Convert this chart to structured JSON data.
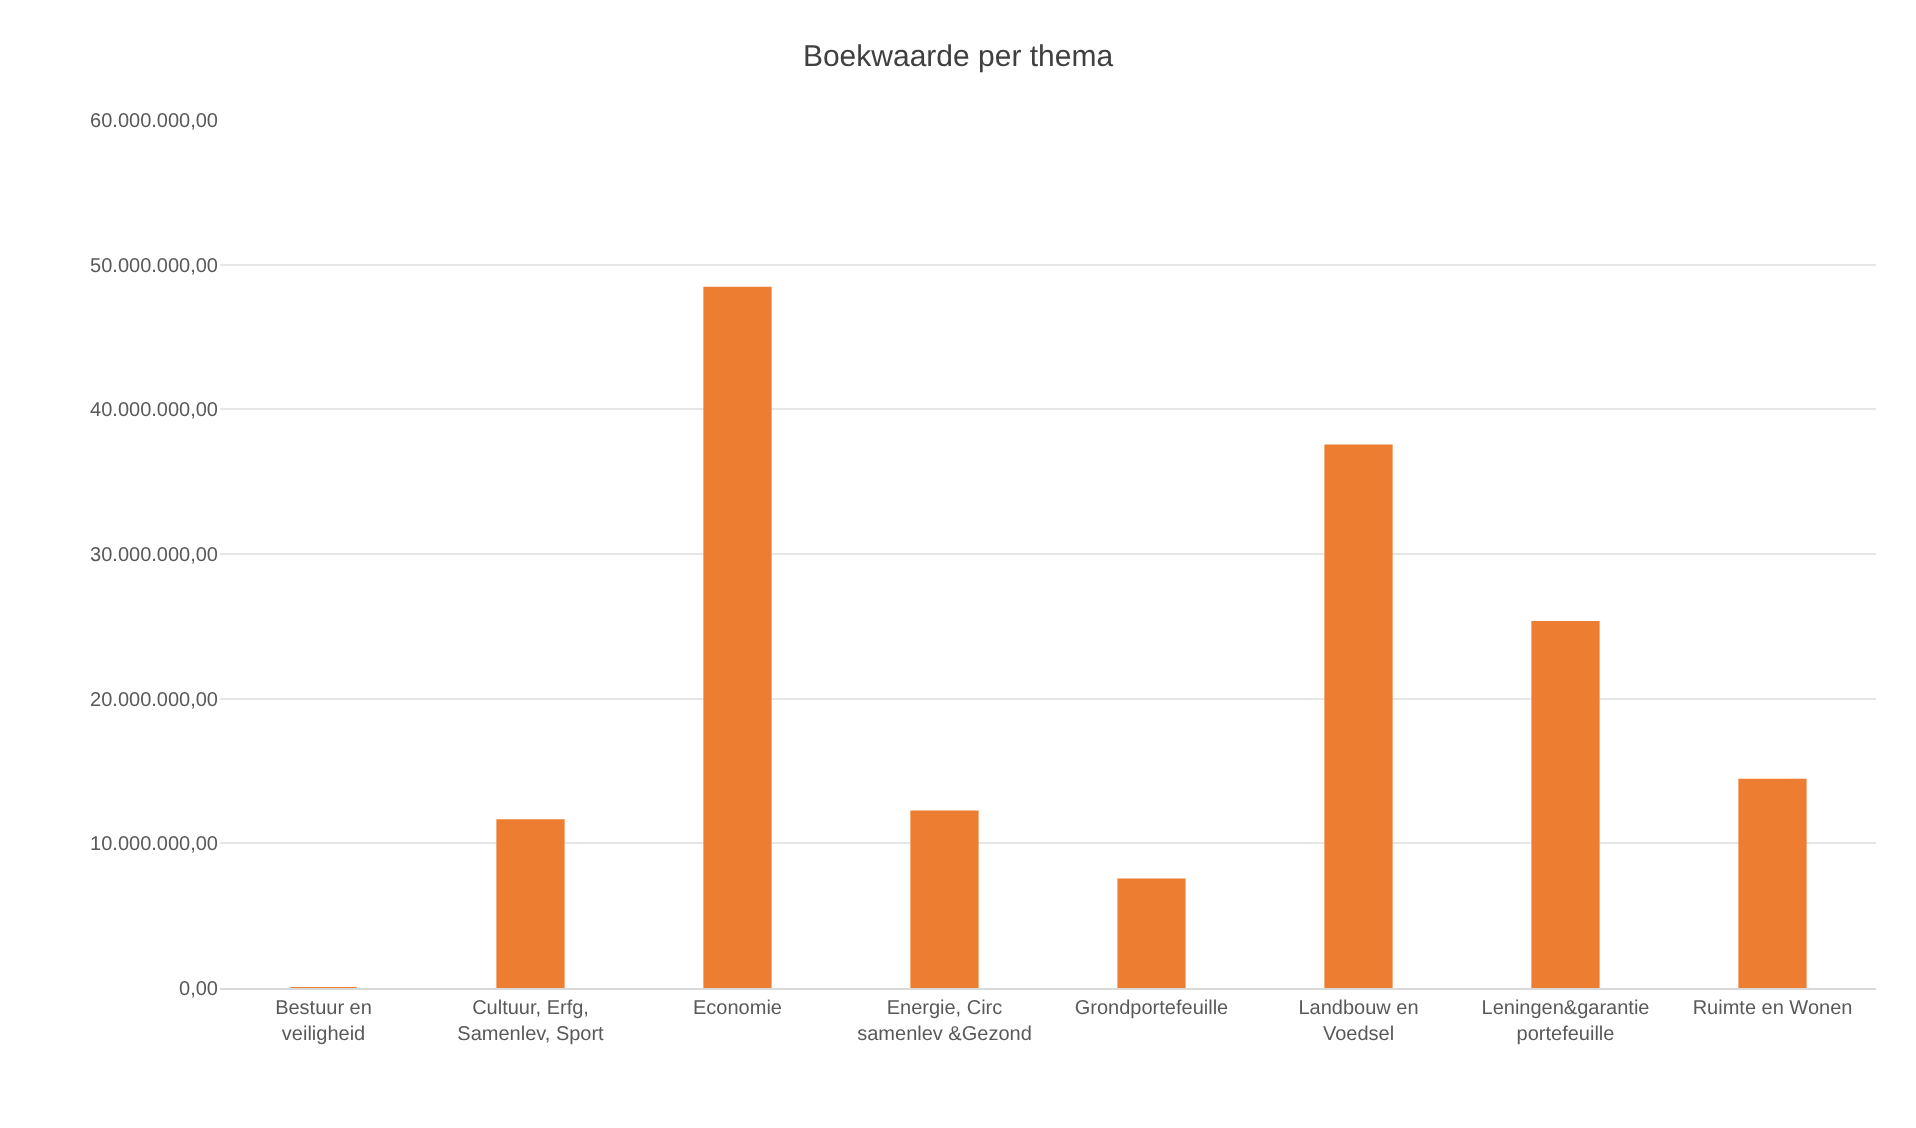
{
  "chart_data": {
    "type": "bar",
    "title": "Boekwaarde per thema",
    "categories": [
      "Bestuur en veiligheid",
      "Cultuur, Erfg, Samenlev, Sport",
      "Economie",
      "Energie, Circ samenlev &Gezond",
      "Grondportefeuille",
      "Landbouw en Voedsel",
      "Leningen&garantie portefeuille",
      "Ruimte en Wonen"
    ],
    "values": [
      0,
      11600000,
      48400000,
      12200000,
      7500000,
      37500000,
      25300000,
      14400000
    ],
    "color": "#ed7d31",
    "ylim": [
      0,
      60000000
    ],
    "yticks": [
      {
        "value": 0,
        "label": "0,00"
      },
      {
        "value": 10000000,
        "label": "10.000.000,00"
      },
      {
        "value": 20000000,
        "label": "20.000.000,00"
      },
      {
        "value": 30000000,
        "label": "30.000.000,00"
      },
      {
        "value": 40000000,
        "label": "40.000.000,00"
      },
      {
        "value": 50000000,
        "label": "50.000.000,00"
      },
      {
        "value": 60000000,
        "label": "60.000.000,00"
      }
    ],
    "grid": "y"
  }
}
